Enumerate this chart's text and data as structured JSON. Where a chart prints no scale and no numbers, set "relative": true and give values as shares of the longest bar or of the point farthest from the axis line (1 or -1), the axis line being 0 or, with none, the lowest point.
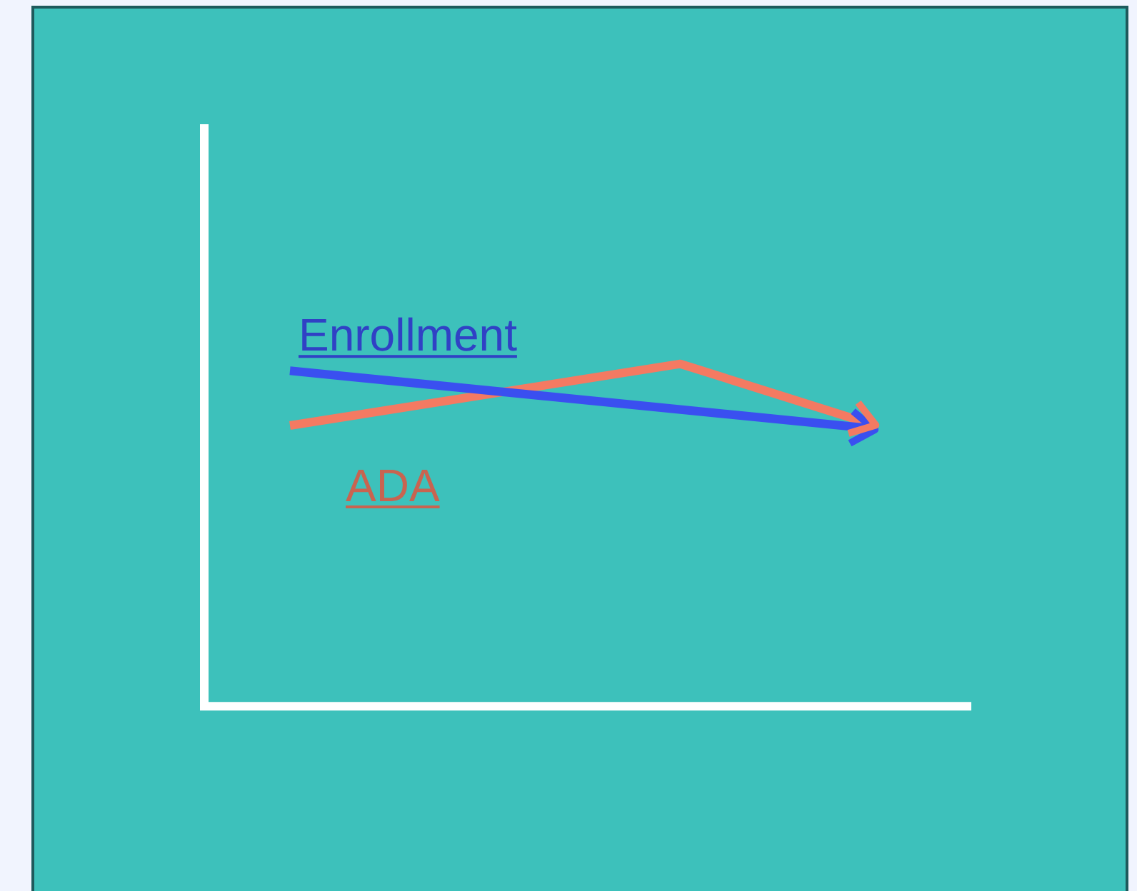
{
  "chart_data": {
    "type": "line",
    "relative": true,
    "categories": [
      null,
      null,
      null,
      null
    ],
    "marker": "none",
    "line_style": "solid",
    "series": [
      {
        "name": "Enrollment",
        "color": "#3a4ff0",
        "values": [
          0.98,
          null,
          null,
          0.81
        ]
      },
      {
        "name": "ADA",
        "color": "#f47a62",
        "values": [
          0.82,
          null,
          1,
          0.82
        ]
      }
    ]
  }
}
